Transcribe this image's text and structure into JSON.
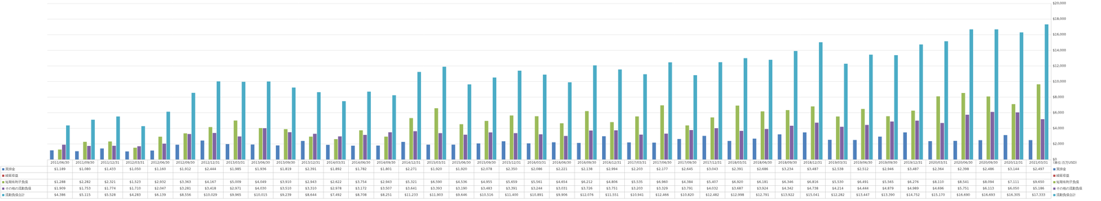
{
  "chart_data": {
    "type": "bar",
    "categories": [
      "2011/06/30",
      "2011/09/30",
      "2011/12/31",
      "2012/03/31",
      "2012/06/30",
      "2012/09/30",
      "2012/12/31",
      "2013/03/31",
      "2013/06/30",
      "2013/09/30",
      "2013/12/31",
      "2014/03/31",
      "2014/06/30",
      "2014/09/30",
      "2014/12/31",
      "2015/03/31",
      "2015/06/30",
      "2015/09/30",
      "2015/12/31",
      "2016/03/31",
      "2016/06/30",
      "2016/09/30",
      "2016/12/31",
      "2017/03/31",
      "2017/06/30",
      "2017/09/30",
      "2017/12/31",
      "2018/03/31",
      "2018/06/30",
      "2018/09/30",
      "2018/12/31",
      "2019/03/31",
      "2019/06/30",
      "2019/09/30",
      "2019/12/31",
      "2020/03/31",
      "2020/06/30",
      "2020/09/30",
      "2020/12/31",
      "2021/03/31"
    ],
    "series": [
      {
        "name": "買掛金",
        "color": "#4f81bd",
        "values": [
          1189,
          1080,
          1433,
          1050,
          1160,
          1912,
          2444,
          1985,
          1936,
          1819,
          2391,
          1892,
          1782,
          1801,
          2271,
          1920,
          1920,
          2078,
          2350,
          2086,
          2221,
          2138,
          2994,
          2203,
          2177,
          2645,
          3043,
          2391,
          2686,
          3234,
          3487,
          2538,
          2512,
          2946,
          3487,
          2364,
          2398,
          2486,
          3144,
          2497
        ],
        "value_labels": [
          "$1,189",
          "$1,080",
          "$1,433",
          "$1,050",
          "$1,160",
          "$1,912",
          "$2,444",
          "$1,985",
          "$1,936",
          "$1,819",
          "$2,391",
          "$1,892",
          "$1,782",
          "$1,801",
          "$2,271",
          "$1,920",
          "$1,920",
          "$2,078",
          "$2,350",
          "$2,086",
          "$2,221",
          "$2,138",
          "$2,994",
          "$2,203",
          "$2,177",
          "$2,645",
          "$3,043",
          "$2,391",
          "$2,686",
          "$3,234",
          "$3,487",
          "$2,538",
          "$2,512",
          "$2,946",
          "$3,487",
          "$2,364",
          "$2,398",
          "$2,486",
          "$3,144",
          "$2,497"
        ]
      },
      {
        "name": "繰延収益",
        "color": "#c0504d",
        "values": [
          null,
          null,
          null,
          null,
          null,
          null,
          null,
          null,
          null,
          null,
          null,
          null,
          null,
          null,
          null,
          null,
          null,
          null,
          null,
          null,
          null,
          null,
          null,
          null,
          null,
          null,
          null,
          null,
          null,
          null,
          null,
          null,
          null,
          null,
          null,
          null,
          null,
          null,
          null,
          null
        ],
        "value_labels": [
          null,
          null,
          null,
          null,
          null,
          null,
          null,
          null,
          null,
          null,
          null,
          null,
          null,
          null,
          null,
          null,
          null,
          null,
          null,
          null,
          null,
          null,
          null,
          null,
          null,
          null,
          null,
          null,
          null,
          null,
          null,
          null,
          null,
          null,
          null,
          null,
          null,
          null,
          null,
          null
        ]
      },
      {
        "name": "短期有利子負債",
        "color": "#9bbb59",
        "values": [
          1288,
          2282,
          2321,
          1523,
          2932,
          3363,
          4167,
          5009,
          4049,
          3910,
          2943,
          2622,
          3754,
          2943,
          5321,
          6590,
          4536,
          4955,
          5659,
          5561,
          4654,
          6212,
          4806,
          5535,
          6960,
          4384,
          5407,
          6920,
          6181,
          6346,
          6816,
          5530,
          6491,
          5565,
          6276,
          8110,
          8541,
          8094,
          7111,
          9650
        ],
        "value_labels": [
          "$1,288",
          "$2,282",
          "$2,321",
          "$1,523",
          "$2,932",
          "$3,363",
          "$4,167",
          "$5,009",
          "$4,049",
          "$3,910",
          "$2,943",
          "$2,622",
          "$3,754",
          "$2,943",
          "$5,321",
          "$6,590",
          "$4,536",
          "$4,955",
          "$5,659",
          "$5,561",
          "$4,654",
          "$6,212",
          "$4,806",
          "$5,535",
          "$6,960",
          "$4,384",
          "$5,407",
          "$6,920",
          "$6,181",
          "$6,346",
          "$6,816",
          "$5,530",
          "$6,491",
          "$5,565",
          "$6,276",
          "$8,110",
          "$8,541",
          "$8,094",
          "$7,111",
          "$9,650"
        ]
      },
      {
        "name": "その他の流動負債",
        "color": "#8064a2",
        "values": [
          1909,
          1753,
          1774,
          1710,
          2047,
          3281,
          3418,
          2971,
          4030,
          3510,
          3310,
          2978,
          3172,
          3507,
          3641,
          3393,
          3190,
          3483,
          3391,
          3244,
          3031,
          3726,
          3751,
          3203,
          3329,
          3791,
          4032,
          3687,
          3924,
          4342,
          4738,
          4214,
          4444,
          4879,
          4989,
          4696,
          5751,
          6113,
          6050,
          5186
        ],
        "value_labels": [
          "$1,909",
          "$1,753",
          "$1,774",
          "$1,710",
          "$2,047",
          "$3,281",
          "$3,418",
          "$2,971",
          "$4,030",
          "$3,510",
          "$3,310",
          "$2,978",
          "$3,172",
          "$3,507",
          "$3,641",
          "$3,393",
          "$3,190",
          "$3,483",
          "$3,391",
          "$3,244",
          "$3,031",
          "$3,726",
          "$3,751",
          "$3,203",
          "$3,329",
          "$3,791",
          "$4,032",
          "$3,687",
          "$3,924",
          "$4,342",
          "$4,738",
          "$4,214",
          "$4,444",
          "$4,879",
          "$4,989",
          "$4,696",
          "$5,751",
          "$6,113",
          "$6,050",
          "$5,186"
        ]
      },
      {
        "name": "流動負債合計",
        "color": "#4bacc6",
        "values": [
          4386,
          5115,
          5528,
          4283,
          6139,
          8556,
          10029,
          9965,
          10015,
          9239,
          8644,
          7492,
          8708,
          8251,
          11233,
          11903,
          9646,
          10516,
          11400,
          10891,
          9906,
          12076,
          11551,
          10941,
          12466,
          10820,
          12482,
          12998,
          12791,
          13922,
          15041,
          12282,
          13447,
          13390,
          14752,
          15170,
          16690,
          16693,
          16305,
          17333
        ],
        "value_labels": [
          "$4,386",
          "$5,115",
          "$5,528",
          "$4,283",
          "$6,139",
          "$8,556",
          "$10,029",
          "$9,965",
          "$10,015",
          "$9,239",
          "$8,644",
          "$7,492",
          "$8,708",
          "$8,251",
          "$11,233",
          "$11,903",
          "$9,646",
          "$10,516",
          "$11,400",
          "$10,891",
          "$9,906",
          "$12,076",
          "$11,551",
          "$10,941",
          "$12,466",
          "$10,820",
          "$12,482",
          "$12,998",
          "$12,791",
          "$13,922",
          "$15,041",
          "$12,282",
          "$13,447",
          "$13,390",
          "$14,752",
          "$15,170",
          "$16,690",
          "$16,693",
          "$16,305",
          "$17,333"
        ]
      }
    ],
    "ylim": [
      0,
      20000
    ],
    "yticks": [
      {
        "value": 0,
        "label": "$0"
      },
      {
        "value": 2000,
        "label": "$2,000"
      },
      {
        "value": 4000,
        "label": "$4,000"
      },
      {
        "value": 6000,
        "label": "$6,000"
      },
      {
        "value": 8000,
        "label": "$8,000"
      },
      {
        "value": 10000,
        "label": "$10,000"
      },
      {
        "value": 12000,
        "label": "$12,000"
      },
      {
        "value": 14000,
        "label": "$14,000"
      },
      {
        "value": 16000,
        "label": "$16,000"
      },
      {
        "value": 18000,
        "label": "$18,000"
      },
      {
        "value": 20000,
        "label": "$20,000"
      }
    ],
    "annotation": "(単位:百万USD)",
    "grid": true,
    "legend": "right",
    "data_labels": true
  }
}
